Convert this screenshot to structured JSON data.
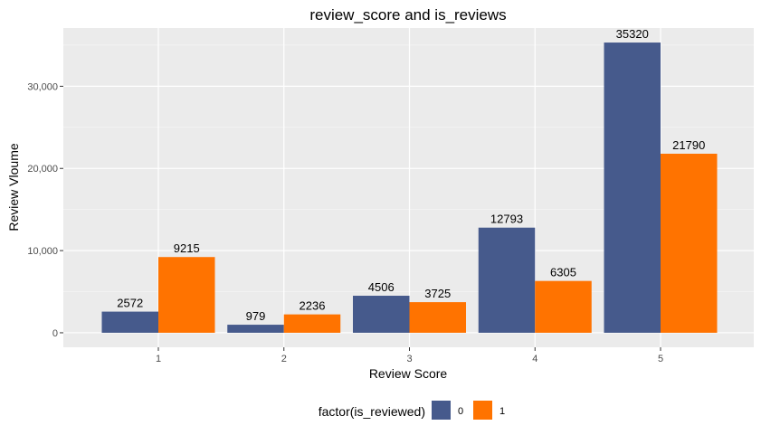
{
  "chart_data": {
    "type": "bar",
    "title": "review_score and is_reviews",
    "xlabel": "Review Score",
    "ylabel": "Review Vloume",
    "categories": [
      "1",
      "2",
      "3",
      "4",
      "5"
    ],
    "series": [
      {
        "name": "0",
        "color": "#465a8c",
        "values": [
          2572,
          979,
          4506,
          12793,
          35320
        ]
      },
      {
        "name": "1",
        "color": "#ff7300",
        "values": [
          9215,
          2236,
          3725,
          6305,
          21790
        ]
      }
    ],
    "data_labels": [
      [
        "2572",
        "979",
        "4506",
        "12793",
        "35320"
      ],
      [
        "9215",
        "2236",
        "3725",
        "6305",
        "21790"
      ]
    ],
    "ylim": [
      -1766,
      37086
    ],
    "yticks": [
      0,
      10000,
      20000,
      30000
    ],
    "ytick_labels": [
      "0",
      "10,000",
      "20,000",
      "30,000"
    ],
    "grid": true,
    "panel_background": "#ebebeb",
    "legend": {
      "title": "factor(is_reviewed)",
      "position": "bottom",
      "entries": [
        "0",
        "1"
      ]
    }
  }
}
